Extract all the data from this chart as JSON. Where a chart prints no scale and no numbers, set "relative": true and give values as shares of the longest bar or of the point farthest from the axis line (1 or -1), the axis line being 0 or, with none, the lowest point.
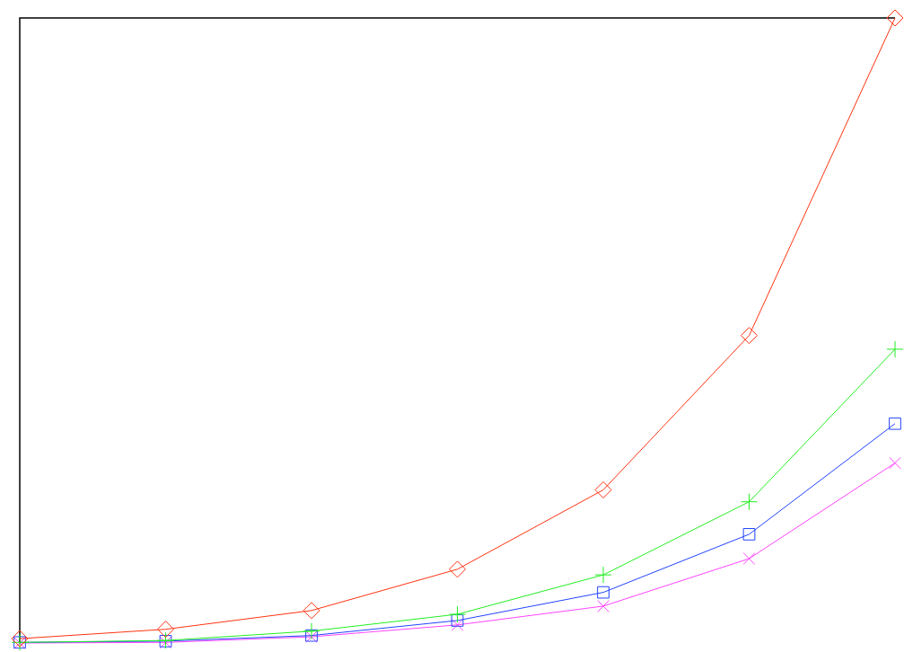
{
  "chart_data": {
    "type": "line",
    "relative": true,
    "categories": [
      null,
      null,
      null,
      null,
      null,
      null,
      null
    ],
    "legend": false,
    "series": [
      {
        "color": "#ff3311",
        "marker": "diamond",
        "values": [
          0.007,
          0.022,
          0.052,
          0.118,
          0.245,
          0.492,
          1
        ]
      },
      {
        "color": "#22ee22",
        "marker": "cross",
        "values": [
          0.001,
          0.004,
          0.019,
          0.046,
          0.109,
          0.226,
          0.47
        ]
      },
      {
        "color": "#2244ff",
        "marker": "square",
        "values": [
          0.001,
          0.003,
          0.012,
          0.036,
          0.081,
          0.174,
          0.351
        ]
      },
      {
        "color": "#ff44ff",
        "marker": "x",
        "values": [
          0,
          0.001,
          0.01,
          0.029,
          0.059,
          0.135,
          0.288
        ]
      }
    ]
  }
}
